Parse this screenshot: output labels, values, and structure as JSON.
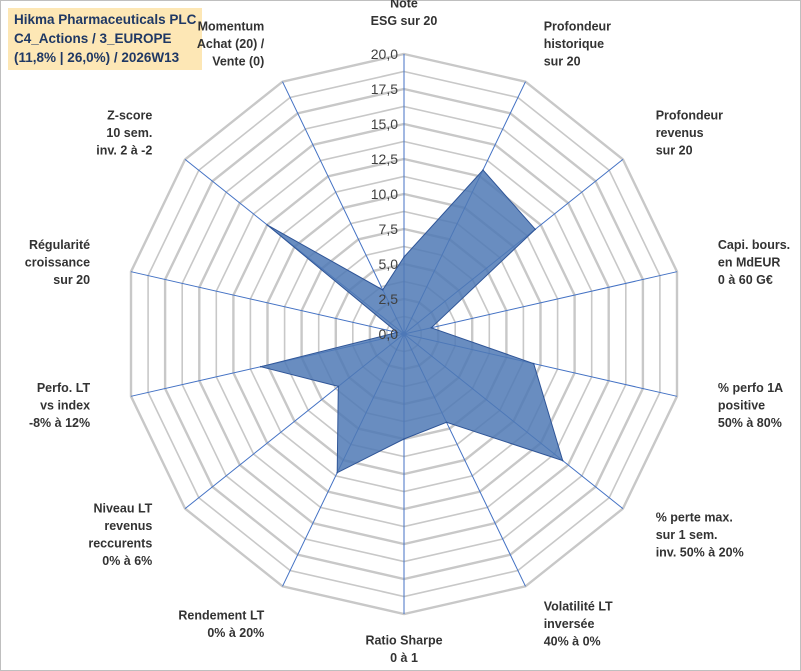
{
  "header": {
    "lines": [
      "Hikma Pharmaceuticals PLC",
      "C4_Actions / 3_EUROPE",
      "(11,8% | 26,0%) / 2026W13"
    ]
  },
  "colors": {
    "series_fill": "#4f79b5",
    "series_stroke": "#2f5597",
    "grid": "#c8c8c8",
    "spoke": "#4472c4",
    "header_bg": "#fde7b5"
  },
  "chart_data": {
    "type": "radar",
    "rlim": [
      0,
      20
    ],
    "ticks": [
      "0,0",
      "2,5",
      "5,0",
      "7,5",
      "10,0",
      "12,5",
      "15,0",
      "17,5",
      "20,0"
    ],
    "grid": true,
    "legend": "none",
    "categories": [
      [
        "Note",
        "ESG sur 20"
      ],
      [
        "Profondeur",
        "historique",
        "sur 20"
      ],
      [
        "Profondeur",
        "revenus",
        "sur 20"
      ],
      [
        "Capi. bours.",
        "en MdEUR",
        "0 à 60 G€"
      ],
      [
        "% perfo 1A",
        "positive",
        "50% à 80%"
      ],
      [
        "% perte max.",
        "sur 1 sem.",
        "inv. 50% à 20%"
      ],
      [
        "Volatilité LT",
        "inversée",
        "40% à 0%"
      ],
      [
        "Ratio Sharpe",
        "0 à 1"
      ],
      [
        "Rendement LT",
        "0% à 20%"
      ],
      [
        "Niveau LT",
        "revenus",
        "reccurents",
        "0% à 6%"
      ],
      [
        "Perfo. LT",
        "vs index",
        "-8% à 12%"
      ],
      [
        "Régularité",
        "croissance",
        "sur 20"
      ],
      [
        "Z-score",
        "10 sem.",
        "inv. 2 à -2"
      ],
      [
        "Momentum",
        "Achat (20) /",
        "Vente (0)"
      ]
    ],
    "series": [
      {
        "values": [
          5.5,
          13.0,
          12.0,
          2.0,
          9.5,
          14.5,
          7.0,
          7.5,
          11.0,
          6.0,
          10.5,
          0.5,
          12.5,
          3.5
        ]
      }
    ]
  }
}
